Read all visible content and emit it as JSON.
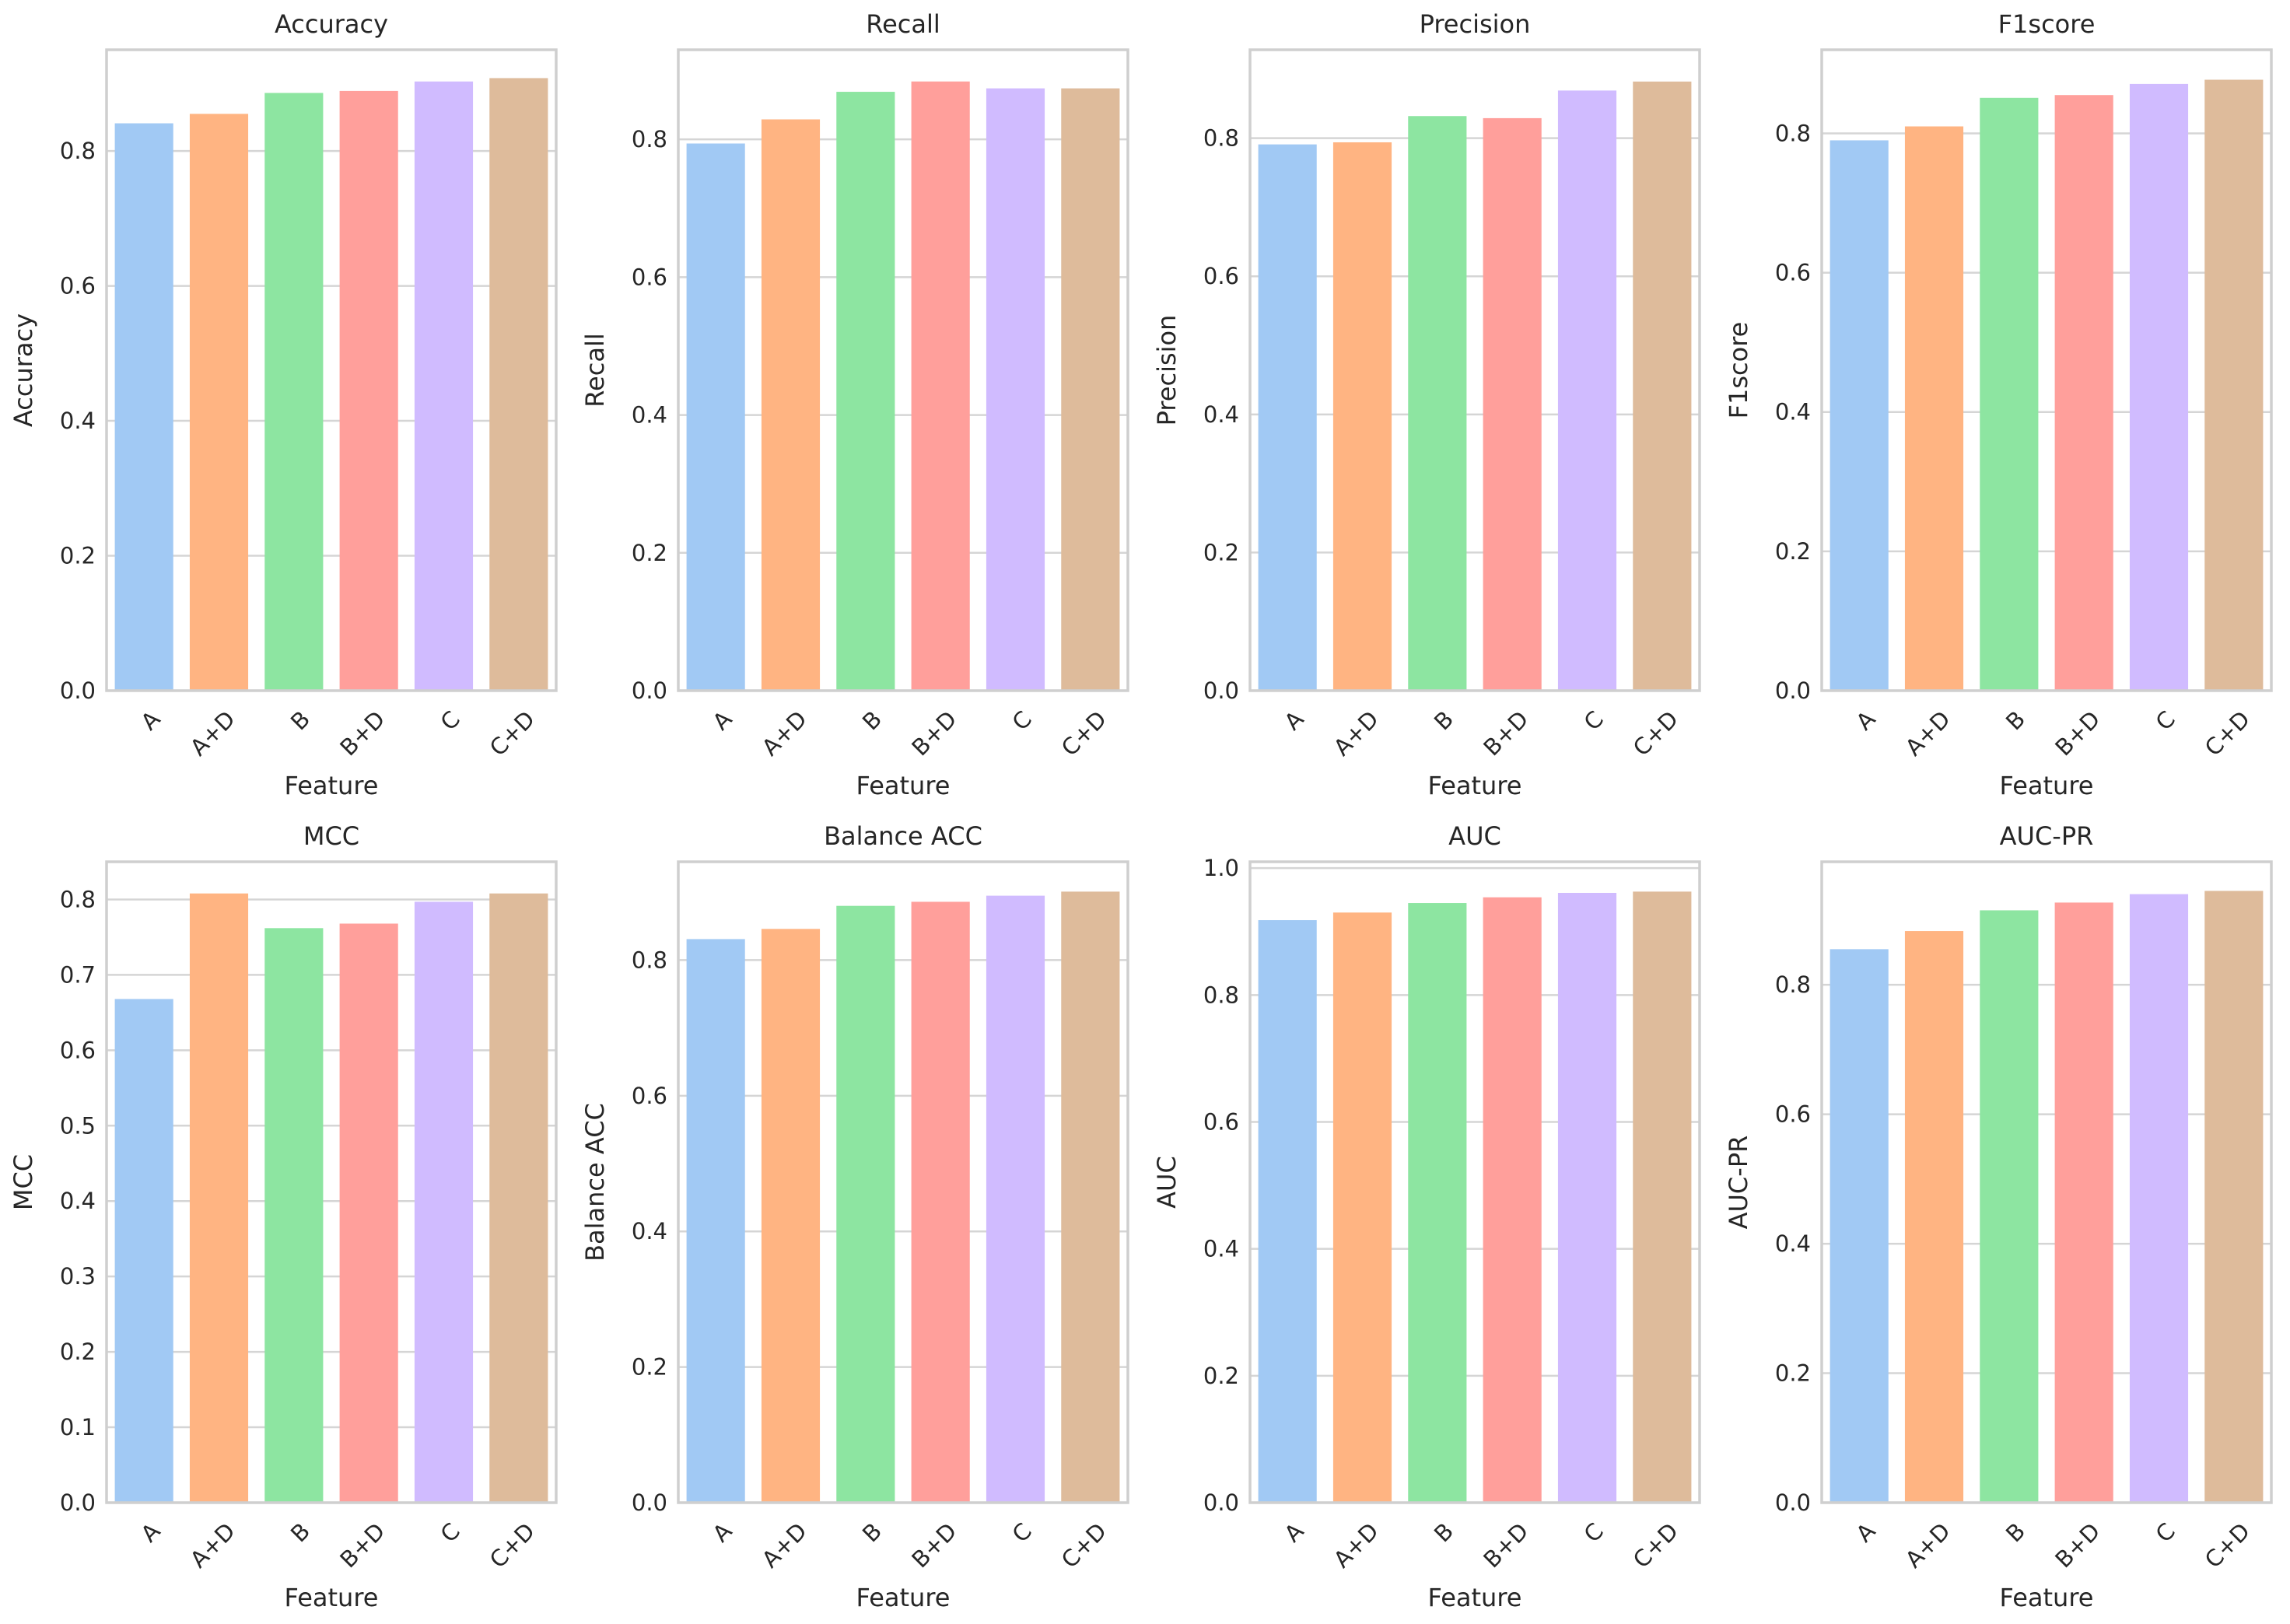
{
  "figure": {
    "columns": 4,
    "rows": 2
  },
  "chart_data": [
    {
      "type": "bar",
      "title": "Accuracy",
      "xlabel": "Feature",
      "ylabel": "Accuracy",
      "categories": [
        "A",
        "A+D",
        "B",
        "B+D",
        "C",
        "C+D"
      ],
      "values": [
        0.841,
        0.855,
        0.886,
        0.889,
        0.903,
        0.908
      ],
      "ylim": [
        0,
        0.95
      ],
      "yticks": [
        "0.0",
        "0.2",
        "0.4",
        "0.6",
        "0.8"
      ],
      "grid": true
    },
    {
      "type": "bar",
      "title": "Recall",
      "xlabel": "Feature",
      "ylabel": "Recall",
      "categories": [
        "A",
        "A+D",
        "B",
        "B+D",
        "C",
        "C+D"
      ],
      "values": [
        0.794,
        0.829,
        0.869,
        0.884,
        0.874,
        0.874
      ],
      "ylim": [
        0,
        0.93
      ],
      "yticks": [
        "0.0",
        "0.2",
        "0.4",
        "0.6",
        "0.8"
      ],
      "grid": true
    },
    {
      "type": "bar",
      "title": "Precision",
      "xlabel": "Feature",
      "ylabel": "Precision",
      "categories": [
        "A",
        "A+D",
        "B",
        "B+D",
        "C",
        "C+D"
      ],
      "values": [
        0.791,
        0.794,
        0.832,
        0.829,
        0.869,
        0.882
      ],
      "ylim": [
        0,
        0.928
      ],
      "yticks": [
        "0.0",
        "0.2",
        "0.4",
        "0.6",
        "0.8"
      ],
      "grid": true
    },
    {
      "type": "bar",
      "title": "F1score",
      "xlabel": "Feature",
      "ylabel": "F1score",
      "categories": [
        "A",
        "A+D",
        "B",
        "B+D",
        "C",
        "C+D"
      ],
      "values": [
        0.79,
        0.81,
        0.851,
        0.855,
        0.871,
        0.877
      ],
      "ylim": [
        0,
        0.92
      ],
      "yticks": [
        "0.0",
        "0.2",
        "0.4",
        "0.6",
        "0.8"
      ],
      "grid": true
    },
    {
      "type": "bar",
      "title": "MCC",
      "xlabel": "Feature",
      "ylabel": "MCC",
      "categories": [
        "A",
        "A+D",
        "B",
        "B+D",
        "C",
        "C+D"
      ],
      "values": [
        0.668,
        0.808,
        0.762,
        0.768,
        0.797,
        0.808
      ],
      "ylim": [
        0,
        0.85
      ],
      "yticks": [
        "0.0",
        "0.1",
        "0.2",
        "0.3",
        "0.4",
        "0.5",
        "0.6",
        "0.7",
        "0.8"
      ],
      "grid": true
    },
    {
      "type": "bar",
      "title": "Balance ACC",
      "xlabel": "Feature",
      "ylabel": "Balance ACC",
      "categories": [
        "A",
        "A+D",
        "B",
        "B+D",
        "C",
        "C+D"
      ],
      "values": [
        0.831,
        0.846,
        0.88,
        0.886,
        0.895,
        0.901
      ],
      "ylim": [
        0,
        0.945
      ],
      "yticks": [
        "0.0",
        "0.2",
        "0.4",
        "0.6",
        "0.8"
      ],
      "grid": true
    },
    {
      "type": "bar",
      "title": "AUC",
      "xlabel": "Feature",
      "ylabel": "AUC",
      "categories": [
        "A",
        "A+D",
        "B",
        "B+D",
        "C",
        "C+D"
      ],
      "values": [
        0.918,
        0.93,
        0.945,
        0.954,
        0.961,
        0.963
      ],
      "ylim": [
        0,
        1.01
      ],
      "yticks": [
        "0.0",
        "0.2",
        "0.4",
        "0.6",
        "0.8",
        "1.0"
      ],
      "grid": true
    },
    {
      "type": "bar",
      "title": "AUC-PR",
      "xlabel": "Feature",
      "ylabel": "AUC-PR",
      "categories": [
        "A",
        "A+D",
        "B",
        "B+D",
        "C",
        "C+D"
      ],
      "values": [
        0.855,
        0.883,
        0.915,
        0.927,
        0.94,
        0.945
      ],
      "ylim": [
        0,
        0.99
      ],
      "yticks": [
        "0.0",
        "0.2",
        "0.4",
        "0.6",
        "0.8"
      ],
      "grid": true
    }
  ],
  "palette": [
    "#a1c9f4",
    "#ffb482",
    "#8de5a1",
    "#ff9f9b",
    "#d0bbff",
    "#debb9b"
  ],
  "colors": {
    "grid": "#d5d5d5",
    "spine": "#cfcfcf",
    "text": "#262626",
    "background": "#ffffff"
  }
}
